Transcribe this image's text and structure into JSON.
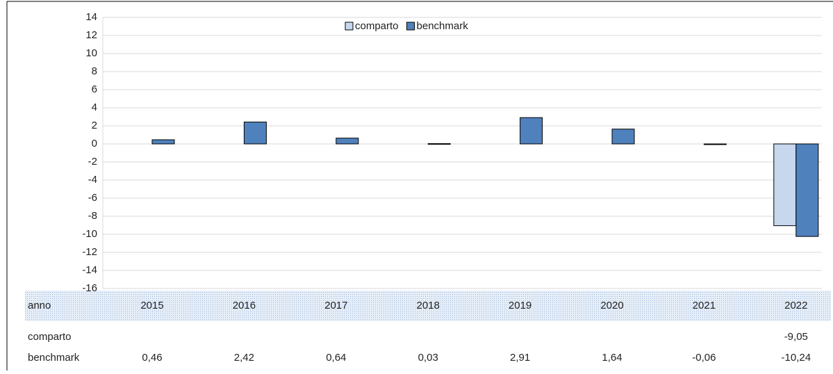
{
  "chart_data": {
    "type": "bar",
    "categories": [
      "2015",
      "2016",
      "2017",
      "2018",
      "2019",
      "2020",
      "2021",
      "2022"
    ],
    "series": [
      {
        "name": "comparto",
        "color": "#c6d7ee",
        "values": [
          null,
          null,
          null,
          null,
          null,
          null,
          null,
          -9.05
        ],
        "value_labels": [
          null,
          null,
          null,
          null,
          null,
          null,
          null,
          "-9,05"
        ]
      },
      {
        "name": "benchmark",
        "color": "#4f81bd",
        "values": [
          0.46,
          2.42,
          0.64,
          0.03,
          2.91,
          1.64,
          -0.06,
          -10.24
        ],
        "value_labels": [
          "0,46",
          "2,42",
          "0,64",
          "0,03",
          "2,91",
          "1,64",
          "-0,06",
          "-10,24"
        ]
      }
    ],
    "ylim": [
      -16,
      14
    ],
    "yticks": [
      -16,
      -14,
      -12,
      -10,
      -8,
      -6,
      -4,
      -2,
      0,
      2,
      4,
      6,
      8,
      10,
      12,
      14
    ],
    "grid": true,
    "legend": "top",
    "table_header": "anno"
  }
}
